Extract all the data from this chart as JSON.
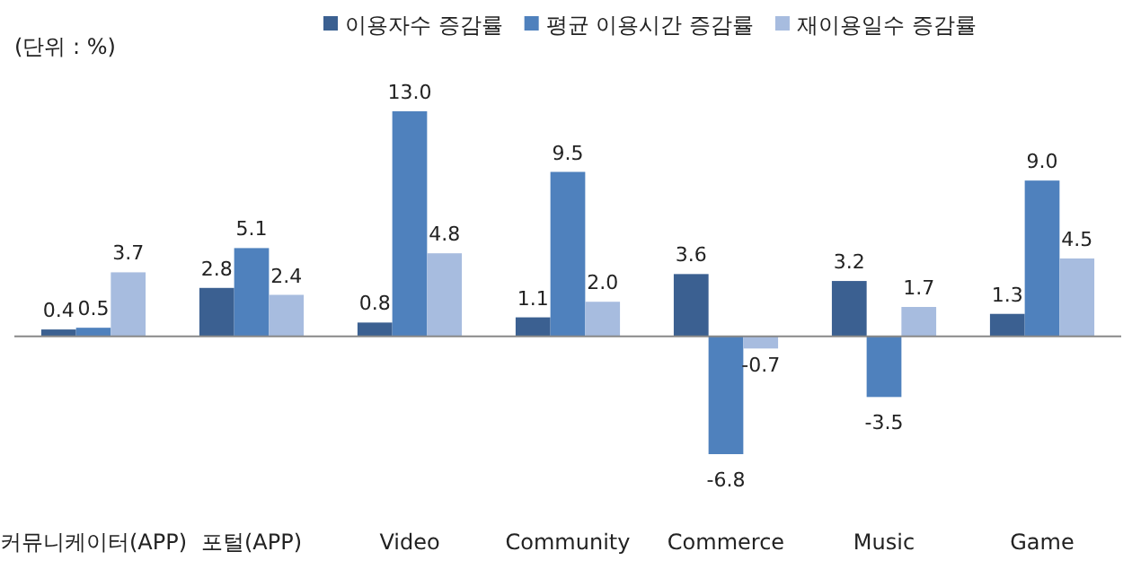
{
  "chart_data": {
    "type": "bar",
    "annotations": [
      "(단위 : %)"
    ],
    "legend": "top",
    "categories": [
      "커뮤니케이터(APP)",
      "포털(APP)",
      "Video",
      "Community",
      "Commerce",
      "Music",
      "Game"
    ],
    "series": [
      {
        "name": "이용자수 증감률",
        "color": "#3b6091",
        "values": [
          0.4,
          2.8,
          0.8,
          1.1,
          3.6,
          3.2,
          1.3
        ],
        "value_labels": [
          "0.4",
          "2.8",
          "0.8",
          "1.1",
          "3.6",
          "3.2",
          "1.3"
        ]
      },
      {
        "name": "평균 이용시간 증감률",
        "color": "#4f81bd",
        "values": [
          0.5,
          5.1,
          13.0,
          9.5,
          -6.8,
          -3.5,
          9.0
        ],
        "value_labels": [
          "0.5",
          "5.1",
          "13.0",
          "9.5",
          "-6.8",
          "-3.5",
          "9.0"
        ]
      },
      {
        "name": "재이용일수 증감률",
        "color": "#a7bcdf",
        "values": [
          3.7,
          2.4,
          4.8,
          2.0,
          -0.7,
          1.7,
          4.5
        ],
        "value_labels": [
          "3.7",
          "2.4",
          "4.8",
          "2.0",
          "-0.7",
          "1.7",
          "4.5"
        ]
      }
    ]
  }
}
